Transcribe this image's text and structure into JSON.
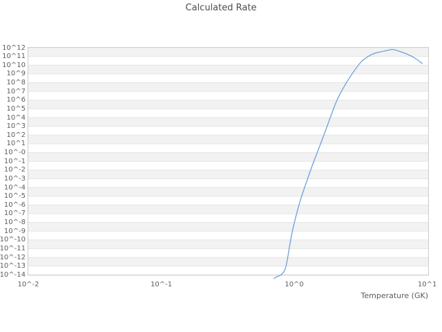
{
  "title": "Calculated Rate",
  "colors": {
    "background": "#ffffff",
    "band": "#f2f2f2",
    "gridline": "#e5e5e5",
    "border": "#cccccc",
    "line": "#6ba0dc",
    "title_text": "#4c4c4c",
    "tick_text": "#5c5c5c"
  },
  "chart_data": {
    "type": "line",
    "title": "Calculated Rate",
    "xlabel": "Temperature (GK)",
    "ylabel": "",
    "xscale": "log",
    "yscale": "log",
    "xlim_log10": [
      -2,
      1.007
    ],
    "ylim_log10": [
      -14,
      12
    ],
    "x_tick_labels": [
      "10^-2",
      "10^-1",
      "10^0",
      "10^1"
    ],
    "x_tick_log10": [
      -2,
      -1,
      0,
      1
    ],
    "y_tick_labels": [
      "10^12",
      "10^11",
      "10^10",
      "10^9",
      "10^8",
      "10^7",
      "10^6",
      "10^5",
      "10^4",
      "10^3",
      "10^2",
      "10^1",
      "10^-0",
      "10^-1",
      "10^-2",
      "10^-3",
      "10^-4",
      "10^-5",
      "10^-6",
      "10^-7",
      "10^-8",
      "10^-9",
      "10^-10",
      "10^-11",
      "10^-12",
      "10^-13",
      "10^-14"
    ],
    "y_tick_exp": [
      12,
      11,
      10,
      9,
      8,
      7,
      6,
      5,
      4,
      3,
      2,
      1,
      0,
      -1,
      -2,
      -3,
      -4,
      -5,
      -6,
      -7,
      -8,
      -9,
      -10,
      -11,
      -12,
      -13,
      -14
    ],
    "grid": "horizontal-gridlines-with-alternating-decade-bands",
    "legend": "none",
    "series": [
      {
        "name": "calculated-rate",
        "color": "#6ba0dc",
        "points_t_gk": [
          0.705,
          0.72,
          0.81,
          0.87,
          0.95,
          1.03,
          1.12,
          1.24,
          1.35,
          1.48,
          1.7,
          2.03,
          2.3,
          2.64,
          3.15,
          3.6,
          4.07,
          4.98,
          5.5,
          6.3,
          7.1,
          8.0,
          9.22
        ],
        "points_log10_rate": [
          -14.54,
          -14.3,
          -13.9,
          -12.9,
          -9.6,
          -7.3,
          -5.3,
          -3.3,
          -1.7,
          -0.1,
          2.3,
          5.5,
          7.2,
          8.7,
          10.3,
          11.0,
          11.38,
          11.68,
          11.8,
          11.55,
          11.25,
          10.85,
          10.18
        ]
      }
    ]
  }
}
